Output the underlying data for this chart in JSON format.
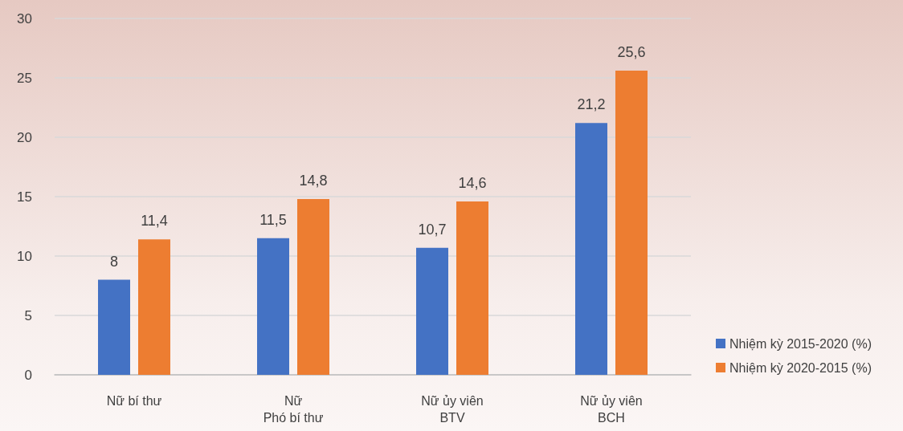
{
  "chart_data": {
    "type": "bar",
    "categories": [
      "Nữ bí thư",
      "Nữ\nPhó bí thư",
      "Nữ ủy viên\nBTV",
      "Nữ ủy viên\nBCH"
    ],
    "series": [
      {
        "name": "Nhiệm kỳ 2015-2020 (%)",
        "color": "#4472c4",
        "values": [
          8,
          11.5,
          10.7,
          21.2
        ],
        "value_labels": [
          "8",
          "11,5",
          "10,7",
          "21,2"
        ]
      },
      {
        "name": "Nhiệm kỳ 2020-2015 (%)",
        "color": "#ed7d31",
        "values": [
          11.4,
          14.8,
          14.6,
          25.6
        ],
        "value_labels": [
          "11,4",
          "14,8",
          "14,6",
          "25,6"
        ]
      }
    ],
    "ylim": [
      0,
      30
    ],
    "yticks": [
      0,
      5,
      10,
      15,
      20,
      25,
      30
    ],
    "grid": "y",
    "legend": "right"
  }
}
